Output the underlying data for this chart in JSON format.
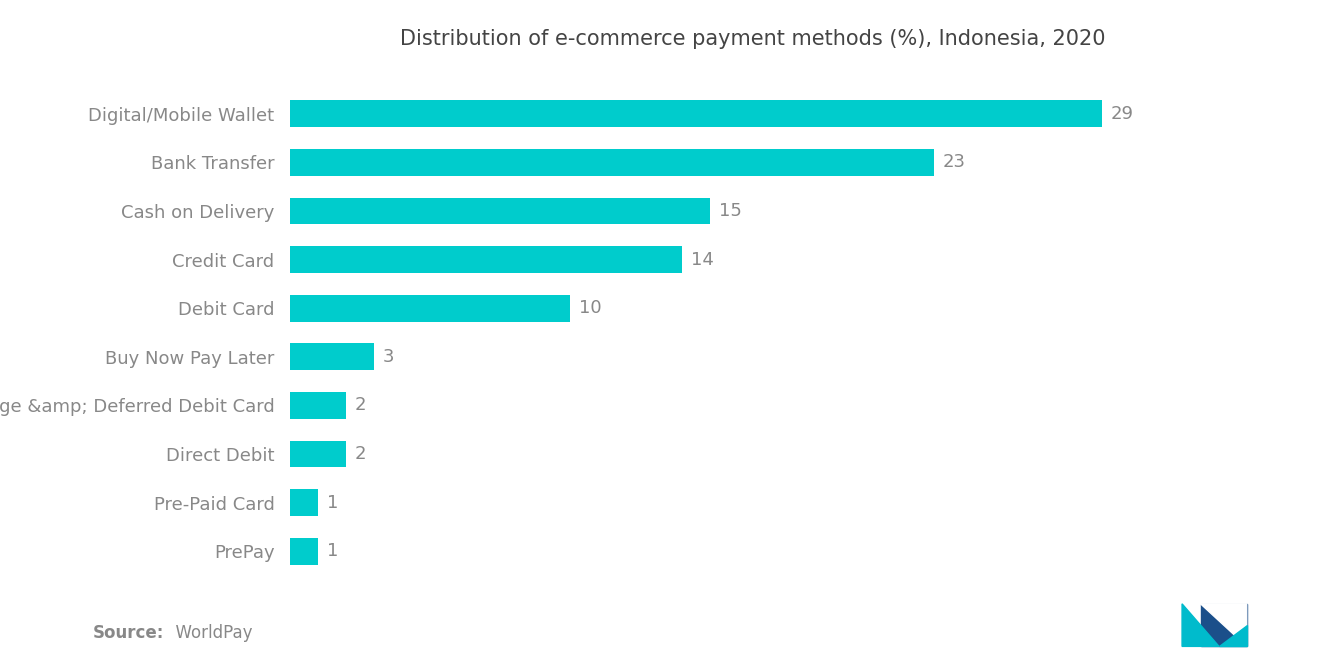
{
  "title": "Distribution of e-commerce payment methods (%), Indonesia, 2020",
  "categories": [
    "PrePay",
    "Pre-Paid Card",
    "Direct Debit",
    "Charge &amp; Deferred Debit Card",
    "Buy Now Pay Later",
    "Debit Card",
    "Credit Card",
    "Cash on Delivery",
    "Bank Transfer",
    "Digital/Mobile Wallet"
  ],
  "values": [
    1,
    1,
    2,
    2,
    3,
    10,
    14,
    15,
    23,
    29
  ],
  "bar_color": "#00CCCC",
  "label_color": "#888888",
  "title_color": "#444444",
  "background_color": "#ffffff",
  "source_bold": "Source:",
  "source_rest": "  WorldPay",
  "xlim": [
    0,
    33
  ],
  "bar_height": 0.55,
  "title_fontsize": 15,
  "label_fontsize": 13,
  "value_fontsize": 13,
  "source_fontsize": 12,
  "logo_teal": "#00BBCC",
  "logo_navy": "#1B4F8A"
}
